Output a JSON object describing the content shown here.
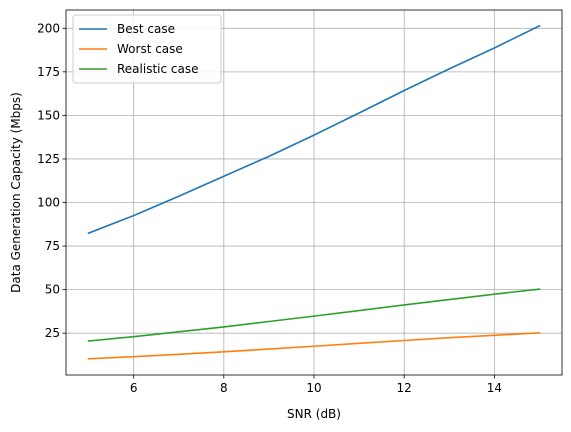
{
  "chart_data": {
    "type": "line",
    "title": "",
    "xlabel": "SNR (dB)",
    "ylabel": "Data Generation Capacity (Mbps)",
    "xlim": [
      4.5,
      15.5
    ],
    "ylim": [
      1.0,
      210.5
    ],
    "xticks": [
      6,
      8,
      10,
      12,
      14
    ],
    "yticks": [
      25,
      50,
      75,
      100,
      125,
      150,
      175,
      200
    ],
    "grid": true,
    "legend_position": "upper-left",
    "x": [
      5,
      6,
      7,
      8,
      9,
      10,
      11,
      12,
      13,
      14,
      15
    ],
    "series": [
      {
        "name": "Best case",
        "color": "#1f77b4",
        "values": [
          82.4,
          92.5,
          103.6,
          115.1,
          126.5,
          138.7,
          151.4,
          164.3,
          176.7,
          188.7,
          201.4
        ]
      },
      {
        "name": "Worst case",
        "color": "#ff7f0e",
        "values": [
          10.3,
          11.5,
          12.9,
          14.3,
          15.9,
          17.5,
          19.2,
          20.8,
          22.4,
          23.8,
          25.2
        ]
      },
      {
        "name": "Realistic case",
        "color": "#2ca02c",
        "values": [
          20.5,
          23.0,
          25.8,
          28.6,
          31.7,
          34.8,
          38.0,
          41.2,
          44.3,
          47.4,
          50.3
        ]
      }
    ]
  }
}
